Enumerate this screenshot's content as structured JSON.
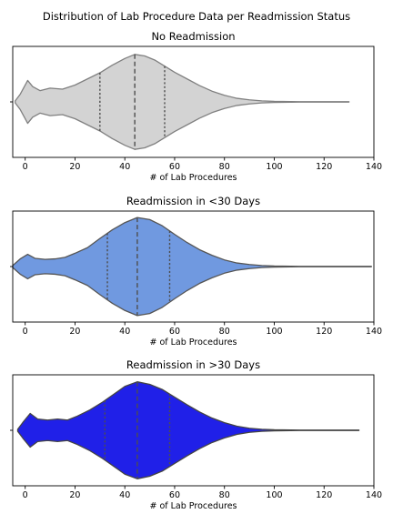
{
  "suptitle": "Distribution of Lab Procedure Data per Readmission Status",
  "chart_data": [
    {
      "type": "violin",
      "title": "No Readmission",
      "xlabel": "# of Lab Procedures",
      "xlim": [
        -5,
        140
      ],
      "xticks": [
        0,
        20,
        40,
        60,
        80,
        100,
        120,
        140
      ],
      "fill": "#d3d3d3",
      "edge": "#808080",
      "quartiles": [
        30,
        44,
        56
      ],
      "density": [
        [
          -4,
          0.02
        ],
        [
          -2,
          0.15
        ],
        [
          1,
          0.42
        ],
        [
          3,
          0.3
        ],
        [
          6,
          0.22
        ],
        [
          10,
          0.27
        ],
        [
          15,
          0.25
        ],
        [
          20,
          0.33
        ],
        [
          25,
          0.45
        ],
        [
          30,
          0.57
        ],
        [
          35,
          0.72
        ],
        [
          40,
          0.85
        ],
        [
          44,
          0.93
        ],
        [
          48,
          0.9
        ],
        [
          52,
          0.82
        ],
        [
          56,
          0.7
        ],
        [
          60,
          0.58
        ],
        [
          65,
          0.45
        ],
        [
          70,
          0.32
        ],
        [
          75,
          0.21
        ],
        [
          80,
          0.13
        ],
        [
          85,
          0.07
        ],
        [
          90,
          0.04
        ],
        [
          95,
          0.02
        ],
        [
          100,
          0.01
        ],
        [
          110,
          0.004
        ],
        [
          130,
          0.003
        ]
      ]
    },
    {
      "type": "violin",
      "title": "Readmission in <30 Days",
      "xlabel": "# of Lab Procedures",
      "xlim": [
        -5,
        140
      ],
      "xticks": [
        0,
        20,
        40,
        60,
        80,
        100,
        120,
        140
      ],
      "fill": "#7099e0",
      "edge": "#555555",
      "quartiles": [
        33,
        45,
        58
      ],
      "density": [
        [
          -5,
          0.02
        ],
        [
          -2,
          0.15
        ],
        [
          1,
          0.24
        ],
        [
          4,
          0.16
        ],
        [
          8,
          0.14
        ],
        [
          12,
          0.15
        ],
        [
          16,
          0.18
        ],
        [
          20,
          0.26
        ],
        [
          25,
          0.37
        ],
        [
          30,
          0.55
        ],
        [
          35,
          0.72
        ],
        [
          40,
          0.86
        ],
        [
          45,
          0.96
        ],
        [
          50,
          0.92
        ],
        [
          55,
          0.8
        ],
        [
          60,
          0.63
        ],
        [
          65,
          0.47
        ],
        [
          70,
          0.33
        ],
        [
          75,
          0.22
        ],
        [
          80,
          0.13
        ],
        [
          85,
          0.07
        ],
        [
          90,
          0.04
        ],
        [
          95,
          0.02
        ],
        [
          100,
          0.01
        ],
        [
          110,
          0.005
        ],
        [
          139,
          0.003
        ]
      ]
    },
    {
      "type": "violin",
      "title": "Readmission in >30 Days",
      "xlabel": "# of Lab Procedures",
      "xlim": [
        -5,
        140
      ],
      "xticks": [
        0,
        20,
        40,
        60,
        80,
        100,
        120,
        140
      ],
      "fill": "#2020e8",
      "edge": "#444444",
      "quartiles": [
        32,
        45,
        58
      ],
      "density": [
        [
          -3,
          0.02
        ],
        [
          -1,
          0.15
        ],
        [
          2,
          0.33
        ],
        [
          5,
          0.22
        ],
        [
          9,
          0.2
        ],
        [
          13,
          0.22
        ],
        [
          17,
          0.2
        ],
        [
          21,
          0.28
        ],
        [
          26,
          0.4
        ],
        [
          31,
          0.55
        ],
        [
          36,
          0.72
        ],
        [
          40,
          0.86
        ],
        [
          45,
          0.95
        ],
        [
          50,
          0.9
        ],
        [
          55,
          0.8
        ],
        [
          60,
          0.65
        ],
        [
          65,
          0.5
        ],
        [
          70,
          0.36
        ],
        [
          75,
          0.24
        ],
        [
          80,
          0.15
        ],
        [
          85,
          0.08
        ],
        [
          90,
          0.04
        ],
        [
          95,
          0.02
        ],
        [
          100,
          0.01
        ],
        [
          110,
          0.004
        ],
        [
          134,
          0.003
        ]
      ]
    }
  ]
}
